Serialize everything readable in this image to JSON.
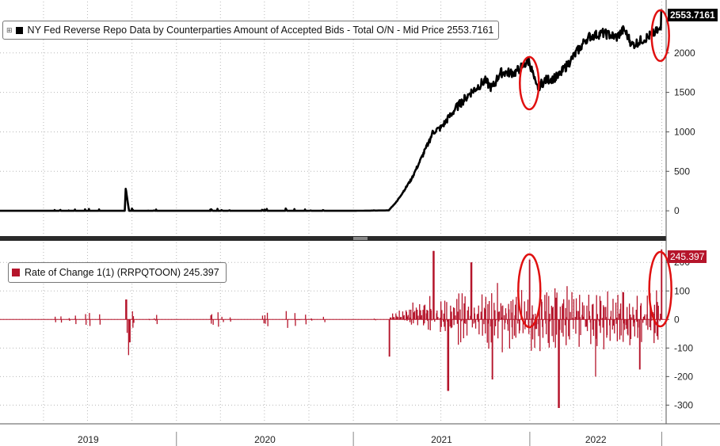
{
  "chart_data": [
    {
      "type": "line",
      "title": "NY Fed Reverse Repo Data by Counterparties Amount of Accepted Bids - Total O/N - Mid Price 2553.7161",
      "series": [
        {
          "name": "NY Fed Reverse Repo Data by Counterparties Amount of Accepted Bids - Total O/N - Mid Price",
          "color": "#000000"
        }
      ],
      "last_value_label": "2553.7161",
      "ylim": [
        -300,
        2650
      ],
      "yticks": [
        "0",
        "500",
        "1000",
        "1500",
        "2000"
      ],
      "ytick_values": [
        0,
        500,
        1000,
        1500,
        2000
      ],
      "x": [
        "2019-01-01",
        "2019-04-01",
        "2019-07-01",
        "2019-09-16",
        "2019-09-18",
        "2019-09-25",
        "2019-10-15",
        "2019-12-31",
        "2020-03-31",
        "2020-06-30",
        "2020-12-31",
        "2021-03-15",
        "2021-04-01",
        "2021-05-01",
        "2021-06-01",
        "2021-06-15",
        "2021-07-01",
        "2021-08-01",
        "2021-09-01",
        "2021-09-30",
        "2021-10-15",
        "2021-11-01",
        "2021-12-01",
        "2021-12-31",
        "2022-01-15",
        "2022-02-01",
        "2022-03-01",
        "2022-04-01",
        "2022-05-01",
        "2022-06-01",
        "2022-06-30",
        "2022-07-15",
        "2022-08-01",
        "2022-09-01",
        "2022-09-29",
        "2022-09-30"
      ],
      "values": [
        0,
        0,
        0,
        0,
        280,
        0,
        0,
        0,
        0,
        0,
        0,
        5,
        120,
        400,
        800,
        1000,
        1050,
        1300,
        1500,
        1650,
        1550,
        1750,
        1750,
        1900,
        1550,
        1650,
        1700,
        1950,
        2200,
        2250,
        2200,
        2300,
        2100,
        2200,
        2300,
        2554
      ],
      "grid": true,
      "legend": "top-left",
      "annotations": [
        "circle around 2021-12-31 spike",
        "circle around 2022-09-30 spike"
      ]
    },
    {
      "type": "bar",
      "title": "Rate of Change 1(1) (RRPQTOON) 245.397",
      "series": [
        {
          "name": "Rate of Change 1(1) (RRPQTOON)",
          "color": "#b5152b"
        }
      ],
      "last_value_label": "245.397",
      "ylim": [
        -360,
        270
      ],
      "yticks": [
        "-300",
        "-200",
        "-100",
        "0",
        "100",
        "200"
      ],
      "ytick_values": [
        -300,
        -200,
        -100,
        0,
        100,
        200
      ],
      "x": [
        "2019-09-18",
        "2019-09-25",
        "2021-03-15",
        "2021-06-15",
        "2021-07-15",
        "2021-09-01",
        "2021-10-15",
        "2021-12-31",
        "2022-03-01",
        "2022-05-15",
        "2022-08-15",
        "2022-09-30"
      ],
      "values": [
        70,
        -80,
        -130,
        240,
        -250,
        200,
        -210,
        210,
        -310,
        -200,
        -175,
        245
      ],
      "grid": true,
      "legend": "top-left",
      "note": "values are representative daily rate-of-change spikes; remaining days are small noise around 0",
      "annotations": [
        "circle around 2021-12-31 spike",
        "circle around 2022-09-30 spike"
      ]
    }
  ],
  "xaxis": {
    "labels": [
      "2019",
      "2020",
      "2021",
      "2022"
    ],
    "start": "2019-01-01",
    "end": "2022-10-10"
  },
  "colors": {
    "line": "#000000",
    "bar": "#b5152b",
    "annotation": "#e01010",
    "grid": "#b0b0b0"
  }
}
